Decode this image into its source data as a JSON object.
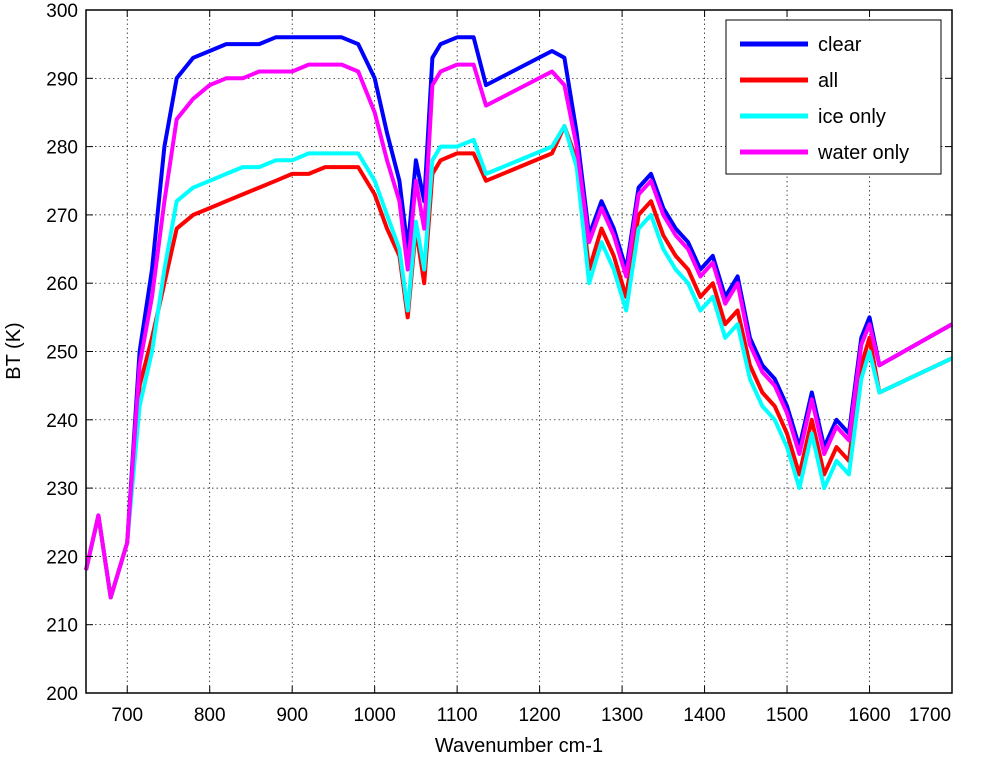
{
  "chart_data": {
    "type": "line",
    "title": "",
    "xlabel": "Wavenumber cm-1",
    "ylabel": "BT (K)",
    "xlim": [
      650,
      1700
    ],
    "ylim": [
      200,
      300
    ],
    "xticks": [
      700,
      800,
      900,
      1000,
      1100,
      1200,
      1300,
      1400,
      1500,
      1600,
      1700
    ],
    "yticks": [
      200,
      210,
      220,
      230,
      240,
      250,
      260,
      270,
      280,
      290,
      300
    ],
    "grid": true,
    "legend_position": "top-right",
    "x": [
      650,
      665,
      680,
      700,
      715,
      730,
      745,
      760,
      780,
      800,
      820,
      840,
      860,
      880,
      900,
      920,
      940,
      960,
      980,
      1000,
      1015,
      1030,
      1040,
      1050,
      1060,
      1070,
      1080,
      1100,
      1120,
      1135,
      1215,
      1230,
      1245,
      1260,
      1275,
      1290,
      1305,
      1320,
      1335,
      1350,
      1365,
      1380,
      1395,
      1410,
      1425,
      1440,
      1455,
      1470,
      1485,
      1500,
      1515,
      1530,
      1545,
      1560,
      1575,
      1590,
      1600,
      1612,
      1700
    ],
    "series": [
      {
        "name": "clear",
        "color": "#0000ff",
        "values": [
          218,
          226,
          214,
          222,
          250,
          262,
          280,
          290,
          293,
          294,
          295,
          295,
          295,
          296,
          296,
          296,
          296,
          296,
          295,
          290,
          282,
          275,
          265,
          278,
          272,
          293,
          295,
          296,
          296,
          289,
          294,
          293,
          282,
          267,
          272,
          268,
          262,
          274,
          276,
          271,
          268,
          266,
          262,
          264,
          258,
          261,
          252,
          248,
          246,
          242,
          236,
          244,
          236,
          240,
          238,
          252,
          255,
          248,
          254
        ]
      },
      {
        "name": "all",
        "color": "#ff0000",
        "values": [
          218,
          226,
          214,
          222,
          245,
          252,
          260,
          268,
          270,
          271,
          272,
          273,
          274,
          275,
          276,
          276,
          277,
          277,
          277,
          273,
          268,
          264,
          255,
          268,
          260,
          276,
          278,
          279,
          279,
          275,
          279,
          283,
          278,
          262,
          268,
          264,
          258,
          270,
          272,
          267,
          264,
          262,
          258,
          260,
          254,
          256,
          248,
          244,
          242,
          238,
          232,
          240,
          232,
          236,
          234,
          248,
          252,
          244,
          249
        ]
      },
      {
        "name": "ice only",
        "color": "#00ffff",
        "values": [
          218,
          226,
          214,
          222,
          242,
          250,
          262,
          272,
          274,
          275,
          276,
          277,
          277,
          278,
          278,
          279,
          279,
          279,
          279,
          275,
          270,
          265,
          256,
          269,
          262,
          278,
          280,
          280,
          281,
          276,
          280,
          283,
          277,
          260,
          266,
          262,
          256,
          268,
          270,
          265,
          262,
          260,
          256,
          258,
          252,
          254,
          246,
          242,
          240,
          236,
          230,
          238,
          230,
          234,
          232,
          246,
          250,
          244,
          249
        ]
      },
      {
        "name": "water only",
        "color": "#ff00ff",
        "values": [
          218,
          226,
          214,
          222,
          248,
          258,
          272,
          284,
          287,
          289,
          290,
          290,
          291,
          291,
          291,
          292,
          292,
          292,
          291,
          285,
          278,
          272,
          262,
          275,
          268,
          289,
          291,
          292,
          292,
          286,
          291,
          289,
          280,
          266,
          271,
          267,
          261,
          273,
          275,
          270,
          267,
          265,
          261,
          263,
          257,
          260,
          251,
          247,
          245,
          241,
          235,
          243,
          235,
          239,
          237,
          251,
          254,
          248,
          254
        ]
      }
    ]
  }
}
